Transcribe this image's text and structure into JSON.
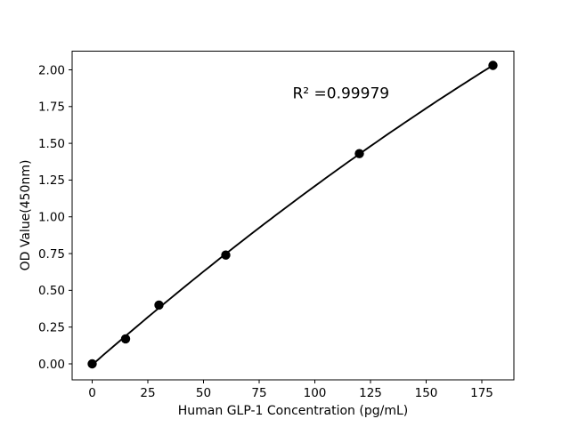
{
  "chart_data": {
    "type": "scatter",
    "title": "",
    "xlabel": "Human GLP-1 Concentration (pg/mL)",
    "ylabel": "OD Value(450nm)",
    "x": [
      0,
      15,
      30,
      60,
      120,
      180
    ],
    "y": [
      0.0,
      0.17,
      0.4,
      0.74,
      1.43,
      2.03
    ],
    "trendline": "quadratic least-squares fit curve through points",
    "annotation": "R² =0.99979",
    "annotation_xy": [
      90,
      1.805
    ],
    "x_ticks": [
      0,
      25,
      50,
      75,
      100,
      125,
      150,
      175
    ],
    "x_tick_labels": [
      "0",
      "25",
      "50",
      "75",
      "100",
      "125",
      "150",
      "175"
    ],
    "y_ticks": [
      0.0,
      0.25,
      0.5,
      0.75,
      1.0,
      1.25,
      1.5,
      1.75,
      2.0
    ],
    "y_tick_labels": [
      "0.00",
      "0.25",
      "0.50",
      "0.75",
      "1.00",
      "1.25",
      "1.50",
      "1.75",
      "2.00"
    ],
    "xlim": [
      -9,
      189.4
    ],
    "ylim": [
      -0.109,
      2.127
    ],
    "grid": false,
    "legend": "none",
    "line_color": "#000000",
    "marker_color": "#000000",
    "text_color": "#000000",
    "background_color": "#ffffff"
  }
}
